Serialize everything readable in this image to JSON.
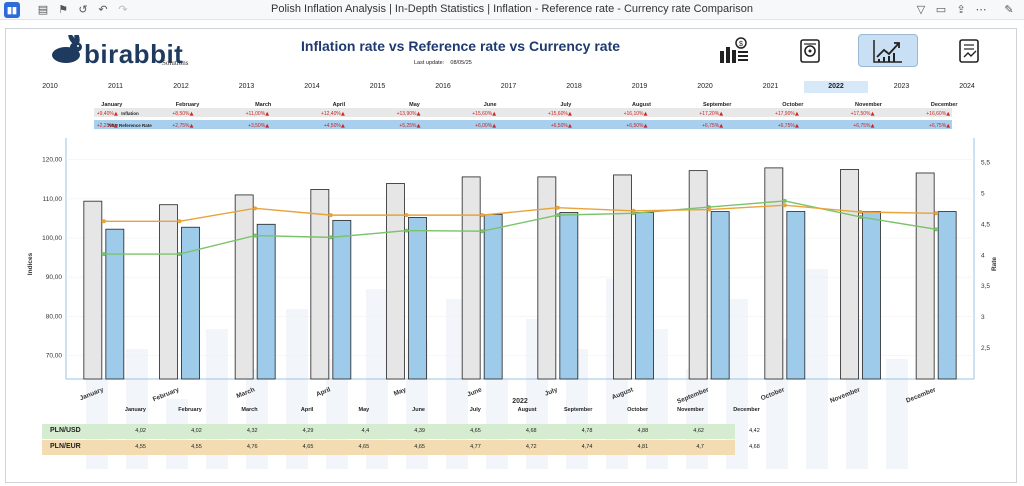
{
  "window": {
    "title": "Polish Inflation Analysis | In-Depth Statistics | Inflation - Reference rate - Currency rate Comparison"
  },
  "brand": {
    "logo_text": "birabbit",
    "logo_sub": "Solutions"
  },
  "header": {
    "headline": "Inflation rate vs Reference rate vs Currency rate",
    "last_update_label": "Last update:",
    "last_update_value": "08/05/25"
  },
  "nav": {
    "buttons": [
      {
        "icon": "money-stack-icon",
        "active": false
      },
      {
        "icon": "document-gear-icon",
        "active": false
      },
      {
        "icon": "growth-chart-icon",
        "active": true
      },
      {
        "icon": "report-chart-icon",
        "active": false
      }
    ]
  },
  "years": [
    "2010",
    "2011",
    "2012",
    "2013",
    "2014",
    "2015",
    "2016",
    "2017",
    "2018",
    "2019",
    "2020",
    "2021",
    "2022",
    "2023",
    "2024"
  ],
  "selected_year": "2022",
  "months": [
    "January",
    "February",
    "March",
    "April",
    "May",
    "June",
    "July",
    "August",
    "September",
    "October",
    "November",
    "December"
  ],
  "rate_table": {
    "rows": [
      {
        "label": "Inflation",
        "values": [
          "+9,40%",
          "+8,50%",
          "+11,00%",
          "+12,40%",
          "+13,90%",
          "+15,60%",
          "+15,60%",
          "+16,10%",
          "+17,20%",
          "+17,90%",
          "+17,50%",
          "+16,60%"
        ]
      },
      {
        "label": "NBP Reference Rate",
        "values": [
          "+2,25%",
          "+2,75%",
          "+3,50%",
          "+4,50%",
          "+5,25%",
          "+6,00%",
          "+6,50%",
          "+6,50%",
          "+6,75%",
          "+6,75%",
          "+6,75%",
          "+6,75%"
        ]
      }
    ],
    "arrow": "▲"
  },
  "chart_data": {
    "type": "bar",
    "categories": [
      "January",
      "February",
      "March",
      "April",
      "May",
      "June",
      "July",
      "August",
      "September",
      "October",
      "November",
      "December"
    ],
    "series": [
      {
        "values": [
          109.4,
          108.5,
          111.0,
          112.4,
          113.9,
          115.6,
          115.6,
          116.1,
          117.2,
          117.9,
          117.5,
          116.6
        ],
        "color": "#e6e6e6",
        "kind": "bar"
      },
      {
        "values": [
          102.25,
          102.75,
          103.5,
          104.5,
          105.25,
          106.0,
          106.5,
          106.5,
          106.75,
          106.75,
          106.75,
          106.75
        ],
        "color": "#9fcbea",
        "kind": "bar"
      },
      {
        "name": "PLN/USD",
        "values": [
          4.02,
          4.02,
          4.32,
          4.29,
          4.4,
          4.39,
          4.65,
          4.68,
          4.78,
          4.88,
          4.62,
          4.42
        ],
        "color": "#7ac36a",
        "kind": "line",
        "axis": "right"
      },
      {
        "name": "PLN/EUR",
        "values": [
          4.55,
          4.55,
          4.76,
          4.65,
          4.65,
          4.65,
          4.77,
          4.72,
          4.74,
          4.81,
          4.7,
          4.68
        ],
        "color": "#e8a33a",
        "kind": "line",
        "axis": "right"
      }
    ],
    "ylabel": "Indices",
    "y2label": "Rate",
    "xlabel": "2022",
    "ylim": [
      64,
      124
    ],
    "y2lim": [
      2.0,
      5.8
    ],
    "yticks": [
      "120,00",
      "110,00",
      "100,00",
      "90,00",
      "80,00",
      "70,00"
    ],
    "yticks_values": [
      120,
      110,
      100,
      90,
      80,
      70
    ],
    "y2ticks": [
      "5,5",
      "5",
      "4,5",
      "4",
      "3,5",
      "3",
      "2,5"
    ],
    "y2ticks_values": [
      5.5,
      5,
      4.5,
      4,
      3.5,
      3,
      2.5
    ]
  },
  "fx_table": {
    "headers": [
      "January",
      "February",
      "March",
      "April",
      "May",
      "June",
      "July",
      "August",
      "September",
      "October",
      "November",
      "December"
    ],
    "rows": [
      {
        "label": "PLN/USD",
        "values": [
          "4,02",
          "4,02",
          "4,32",
          "4,29",
          "4,4",
          "4,39",
          "4,65",
          "4,68",
          "4,78",
          "4,88",
          "4,62",
          "4,42"
        ],
        "color": "#d6ecd0"
      },
      {
        "label": "PLN/EUR",
        "values": [
          "4,55",
          "4,55",
          "4,76",
          "4,65",
          "4,65",
          "4,65",
          "4,77",
          "4,72",
          "4,74",
          "4,81",
          "4,7",
          "4,68"
        ],
        "color": "#f3dcb1"
      }
    ]
  }
}
